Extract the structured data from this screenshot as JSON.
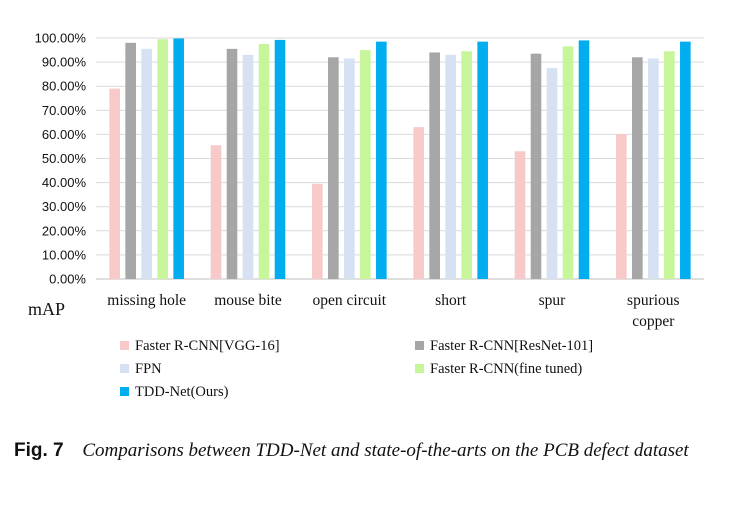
{
  "chart_data": {
    "type": "bar",
    "title": "",
    "ylabel": "mAP",
    "xlabel": "",
    "ylim": [
      0,
      100
    ],
    "ytick_labels": [
      "0.00%",
      "10.00%",
      "20.00%",
      "30.00%",
      "40.00%",
      "50.00%",
      "60.00%",
      "70.00%",
      "80.00%",
      "90.00%",
      "100.00%"
    ],
    "categories": [
      [
        "missing hole"
      ],
      [
        "mouse bite"
      ],
      [
        "open circuit"
      ],
      [
        "short"
      ],
      [
        "spur"
      ],
      [
        "spurious",
        "copper"
      ]
    ],
    "series": [
      {
        "name": "Faster R-CNN[VGG-16]",
        "color": "#f8c9c9",
        "values": [
          79,
          55.5,
          39.5,
          63,
          53,
          60
        ]
      },
      {
        "name": "Faster R-CNN[ResNet-101]",
        "color": "#a6a6a6",
        "values": [
          98,
          95.5,
          92,
          94,
          93.5,
          92
        ]
      },
      {
        "name": "FPN",
        "color": "#d6e1f3",
        "values": [
          95.5,
          93,
          91.5,
          93,
          87.5,
          91.5
        ]
      },
      {
        "name": "Faster R-CNN(fine tuned)",
        "color": "#c7f59a",
        "values": [
          99.5,
          97.5,
          95,
          94.5,
          96.5,
          94.5
        ]
      },
      {
        "name": "TDD-Net(Ours)",
        "color": "#00aef0",
        "values": [
          99.8,
          99.2,
          98.5,
          98.5,
          99,
          98.5
        ]
      }
    ]
  },
  "caption": {
    "label": "Fig. 7",
    "text": "Comparisons between TDD-Net and state-of-the-arts on the PCB defect dataset"
  }
}
